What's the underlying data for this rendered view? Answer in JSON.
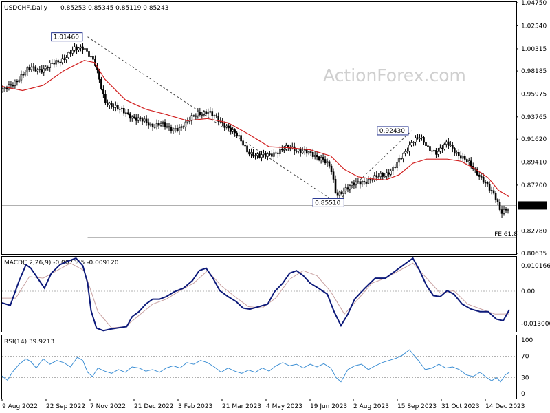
{
  "header": {
    "symbol": "USDCHF,Daily",
    "ohlc": "0.85253 0.85345 0.85119 0.85243"
  },
  "watermark": "ActionForex.com",
  "colors": {
    "candles": "#000000",
    "ma": "#d11f1f",
    "macd": "#0d1a7a",
    "signal": "#c8a0a0",
    "rsi": "#3d8fd4",
    "grid": "#b0b0b0",
    "trendline": "#444444"
  },
  "chart_data": [
    {
      "type": "candlestick",
      "panel": "price",
      "title": "USDCHF,Daily",
      "x_ticks": [
        "9 Aug 2022",
        "22 Sep 2022",
        "7 Nov 2022",
        "21 Dec 2022",
        "3 Feb 2023",
        "21 Mar 2023",
        "4 May 2023",
        "19 Jun 2023",
        "2 Aug 2023",
        "15 Sep 2023",
        "31 Oct 2023",
        "14 Dec 2023"
      ],
      "y_ticks": [
        "1.04750",
        "1.02540",
        "1.00315",
        "0.98185",
        "0.95975",
        "0.93765",
        "0.91620",
        "0.89410",
        "0.87200",
        "0.85243",
        "0.82780",
        "0.80635"
      ],
      "ylim": [
        0.80635,
        1.0475
      ],
      "current_price": 0.85243,
      "current_price_label": "0.85243",
      "close_path": {
        "x": [
          0,
          20,
          42,
          60,
          75,
          90,
          105,
          120,
          135,
          150,
          170,
          190,
          205,
          218,
          232,
          245,
          258,
          270,
          285,
          300,
          315,
          330,
          345,
          360,
          375,
          390,
          405,
          420,
          435,
          450,
          468,
          480,
          488,
          500,
          515,
          530,
          545,
          560,
          575,
          590,
          600,
          610,
          622,
          635,
          650,
          662,
          675,
          690,
          705,
          715,
          722,
          728,
          735,
          741
        ],
        "close": [
          0.962,
          0.972,
          0.985,
          0.983,
          0.989,
          0.994,
          1.002,
          1.005,
          0.99,
          0.953,
          0.945,
          0.938,
          0.934,
          0.929,
          0.932,
          0.925,
          0.927,
          0.932,
          0.941,
          0.943,
          0.935,
          0.928,
          0.918,
          0.904,
          0.899,
          0.902,
          0.904,
          0.909,
          0.905,
          0.902,
          0.898,
          0.888,
          0.862,
          0.868,
          0.873,
          0.876,
          0.879,
          0.882,
          0.891,
          0.904,
          0.916,
          0.918,
          0.907,
          0.904,
          0.912,
          0.904,
          0.898,
          0.886,
          0.876,
          0.865,
          0.858,
          0.846,
          0.849,
          0.852
        ]
      },
      "moving_average": {
        "x": [
          0,
          30,
          60,
          90,
          120,
          135,
          150,
          180,
          210,
          240,
          270,
          300,
          330,
          360,
          390,
          420,
          450,
          480,
          500,
          520,
          540,
          560,
          580,
          600,
          620,
          650,
          670,
          690,
          710,
          725,
          740
        ],
        "y": [
          0.967,
          0.963,
          0.968,
          0.982,
          0.992,
          0.99,
          0.974,
          0.954,
          0.945,
          0.94,
          0.934,
          0.936,
          0.932,
          0.921,
          0.909,
          0.908,
          0.906,
          0.9,
          0.887,
          0.88,
          0.878,
          0.877,
          0.882,
          0.893,
          0.897,
          0.897,
          0.895,
          0.888,
          0.879,
          0.867,
          0.861
        ]
      },
      "annotations": [
        {
          "label": "1.01460",
          "value": 1.0146
        },
        {
          "label": "0.85510",
          "value": 0.8551
        },
        {
          "label": "0.92430",
          "value": 0.9243
        },
        {
          "label": "FE 61.8",
          "value": 0.8217
        }
      ]
    },
    {
      "type": "line",
      "panel": "macd",
      "title": "MACD(12,26,9) -0.007365 -0.009120",
      "y_ticks": [
        "0.010166",
        "0.00",
        "-0.013006"
      ],
      "ylim": [
        -0.016,
        0.0135
      ],
      "series": [
        {
          "name": "MACD",
          "x": [
            0,
            12,
            25,
            35,
            42,
            52,
            62,
            72,
            85,
            98,
            108,
            118,
            125,
            130,
            138,
            148,
            158,
            170,
            182,
            190,
            200,
            210,
            220,
            230,
            240,
            252,
            265,
            278,
            288,
            298,
            308,
            318,
            330,
            342,
            352,
            362,
            375,
            388,
            398,
            410,
            420,
            430,
            440,
            450,
            462,
            475,
            485,
            495,
            505,
            515,
            530,
            545,
            560,
            570,
            580,
            590,
            600,
            610,
            620,
            630,
            640,
            650,
            660,
            672,
            685,
            698,
            710,
            722,
            732,
            741
          ],
          "y": [
            -0.0047,
            -0.0057,
            0.0042,
            0.0106,
            0.0092,
            0.0052,
            0.0012,
            0.0072,
            0.0107,
            0.0122,
            0.0132,
            0.0102,
            0.0032,
            -0.0078,
            -0.0148,
            -0.0158,
            -0.0152,
            -0.0147,
            -0.0142,
            -0.0102,
            -0.0082,
            -0.0052,
            -0.0032,
            -0.0032,
            -0.0022,
            -0.0002,
            0.0012,
            0.0042,
            0.0082,
            0.0092,
            0.0052,
            0.0002,
            -0.0022,
            -0.0042,
            -0.0068,
            -0.0072,
            -0.0062,
            -0.0052,
            -0.0002,
            0.0032,
            0.0072,
            0.0082,
            0.0062,
            0.0032,
            0.0012,
            -0.0012,
            -0.0082,
            -0.0138,
            -0.0092,
            -0.0032,
            0.0012,
            0.0052,
            0.0052,
            0.0072,
            0.0092,
            0.0112,
            0.0132,
            0.0082,
            0.0022,
            -0.0018,
            -0.0022,
            0.0002,
            -0.0012,
            -0.0052,
            -0.0072,
            -0.0082,
            -0.0082,
            -0.0112,
            -0.0118,
            -0.0074
          ]
        },
        {
          "name": "Signal",
          "x": [
            0,
            20,
            40,
            60,
            80,
            100,
            120,
            140,
            160,
            180,
            200,
            220,
            240,
            260,
            280,
            300,
            320,
            340,
            360,
            380,
            400,
            420,
            440,
            460,
            480,
            500,
            520,
            540,
            560,
            580,
            600,
            620,
            640,
            660,
            680,
            700,
            720,
            741
          ],
          "y": [
            -0.0028,
            -0.0028,
            0.0058,
            0.0052,
            0.0082,
            0.0112,
            0.0082,
            -0.0082,
            -0.0147,
            -0.0142,
            -0.0097,
            -0.0052,
            -0.0032,
            0.0002,
            0.0032,
            0.0082,
            0.0022,
            -0.0022,
            -0.0062,
            -0.0067,
            -0.0027,
            0.0048,
            0.0082,
            0.0062,
            -0.0002,
            -0.0092,
            -0.0032,
            0.0032,
            0.0052,
            0.0082,
            0.0112,
            0.0052,
            -0.0008,
            0.0002,
            -0.0052,
            -0.0072,
            -0.0092,
            -0.0091
          ]
        }
      ]
    },
    {
      "type": "line",
      "panel": "rsi",
      "title": "RSI(14) 39.9213",
      "y_ticks": [
        "100",
        "70",
        "30",
        "0"
      ],
      "ylim": [
        0,
        100
      ],
      "series": [
        {
          "name": "RSI(14)",
          "x": [
            0,
            8,
            15,
            25,
            35,
            42,
            50,
            60,
            70,
            80,
            90,
            100,
            110,
            118,
            125,
            132,
            140,
            150,
            160,
            170,
            180,
            190,
            200,
            210,
            220,
            230,
            240,
            250,
            260,
            270,
            280,
            290,
            300,
            310,
            320,
            330,
            340,
            350,
            360,
            370,
            380,
            390,
            400,
            410,
            420,
            430,
            440,
            450,
            460,
            470,
            480,
            488,
            495,
            505,
            515,
            525,
            535,
            545,
            555,
            565,
            575,
            585,
            595,
            600,
            608,
            618,
            628,
            638,
            648,
            658,
            668,
            678,
            688,
            698,
            708,
            715,
            722,
            728,
            735,
            741
          ],
          "y": [
            33,
            25,
            40,
            55,
            65,
            60,
            48,
            65,
            55,
            62,
            58,
            50,
            68,
            62,
            40,
            32,
            48,
            42,
            38,
            45,
            40,
            50,
            48,
            42,
            45,
            40,
            48,
            52,
            48,
            58,
            55,
            62,
            58,
            50,
            40,
            48,
            42,
            38,
            44,
            40,
            48,
            42,
            52,
            58,
            52,
            55,
            48,
            55,
            50,
            56,
            48,
            30,
            22,
            45,
            52,
            55,
            45,
            52,
            58,
            62,
            66,
            72,
            82,
            74,
            62,
            45,
            48,
            55,
            48,
            50,
            45,
            35,
            32,
            40,
            30,
            24,
            30,
            22,
            35,
            40
          ]
        }
      ]
    }
  ]
}
